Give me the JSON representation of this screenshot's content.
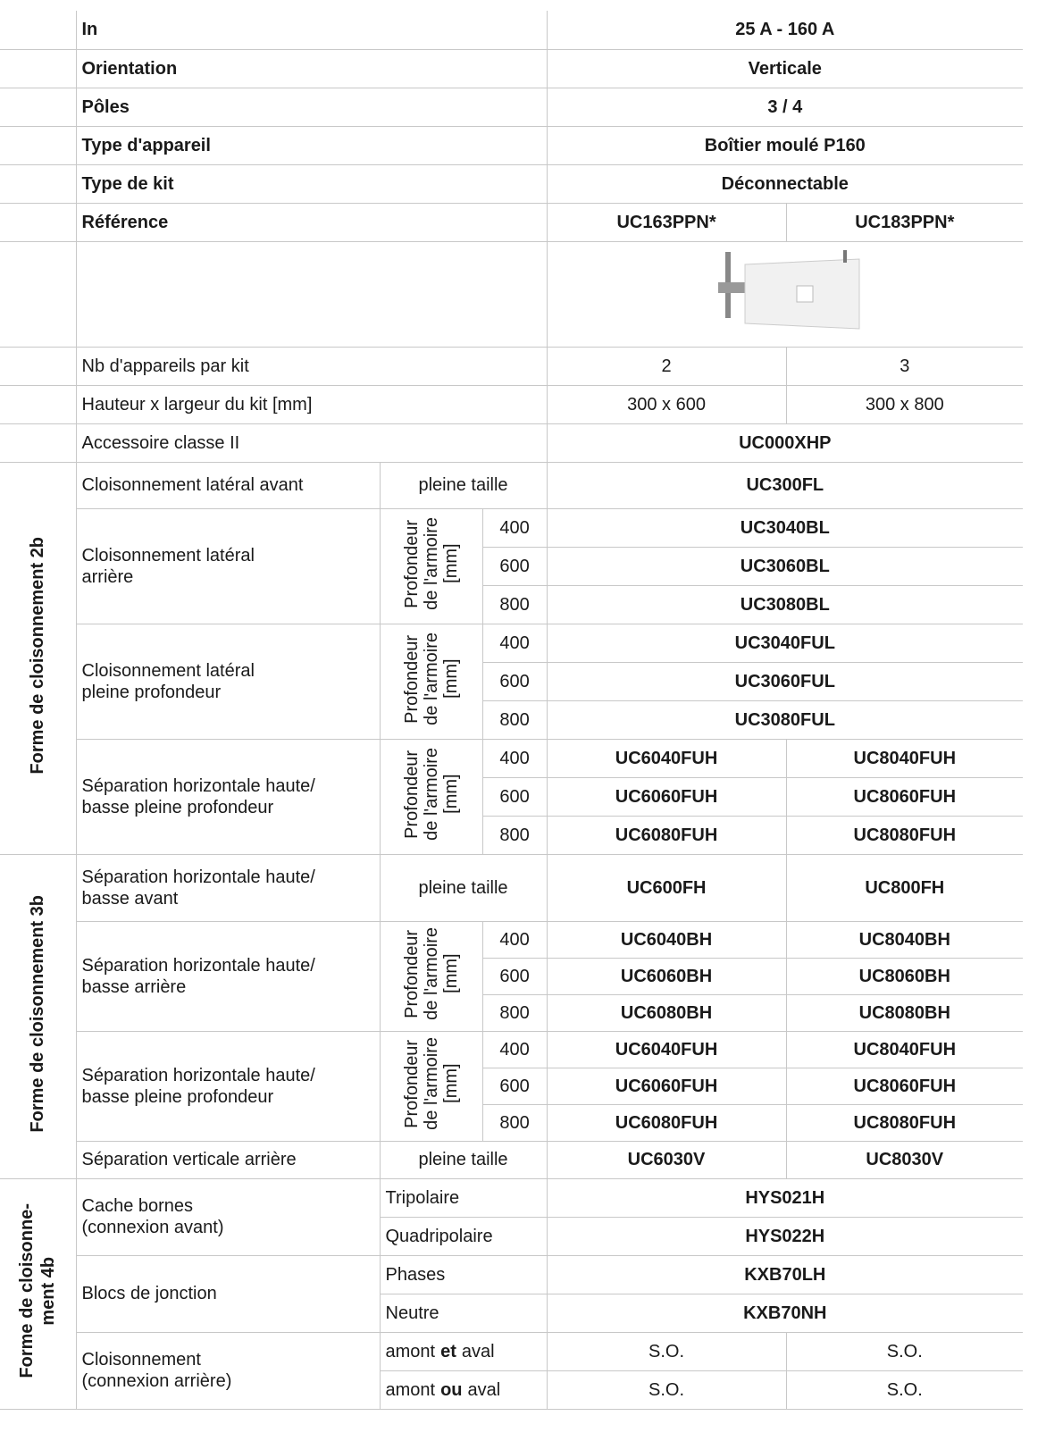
{
  "general": [
    {
      "label": "In",
      "value": "25 A - 160 A"
    },
    {
      "label": "Orientation",
      "value": "Verticale"
    },
    {
      "label": "Pôles",
      "value": "3 / 4"
    },
    {
      "label": "Type d'appareil",
      "value": "Boîtier moulé P160"
    },
    {
      "label": "Type de kit",
      "value": "Déconnectable"
    },
    {
      "label": "Référence",
      "values": [
        "UC163PPN*",
        "UC183PPN*"
      ]
    }
  ],
  "specs": [
    {
      "label": "Nb d'appareils par kit",
      "values": [
        2,
        3
      ]
    },
    {
      "label": "Hauteur x largeur du kit [mm]",
      "values": [
        "300 x 600",
        "300 x 800"
      ]
    },
    {
      "label": "Accessoire classe II",
      "value": "UC000XHP"
    }
  ],
  "sections": [
    {
      "title_lines": [
        "Forme de cloisonnement 2b"
      ],
      "groups": [
        {
          "label": [
            "Cloisonnement latéral avant"
          ],
          "qualifier": "pleine taille",
          "value": "UC300FL"
        },
        {
          "label": [
            "Cloisonnement latéral",
            "arrière"
          ],
          "depth_label": [
            "Profondeur",
            "de l'armoire",
            "[mm]"
          ],
          "rows": [
            {
              "depth": 400,
              "value": "UC3040BL"
            },
            {
              "depth": 600,
              "value": "UC3060BL"
            },
            {
              "depth": 800,
              "value": "UC3080BL"
            }
          ]
        },
        {
          "label": [
            "Cloisonnement latéral",
            "pleine profondeur"
          ],
          "depth_label": [
            "Profondeur",
            "de l'armoire",
            "[mm]"
          ],
          "rows": [
            {
              "depth": 400,
              "value": "UC3040FUL"
            },
            {
              "depth": 600,
              "value": "UC3060FUL"
            },
            {
              "depth": 800,
              "value": "UC3080FUL"
            }
          ]
        },
        {
          "label": [
            "Séparation horizontale haute/",
            "basse pleine profondeur"
          ],
          "depth_label": [
            "Profondeur",
            "de l'armoire",
            "[mm]"
          ],
          "rows": [
            {
              "depth": 400,
              "values": [
                "UC6040FUH",
                "UC8040FUH"
              ]
            },
            {
              "depth": 600,
              "values": [
                "UC6060FUH",
                "UC8060FUH"
              ]
            },
            {
              "depth": 800,
              "values": [
                "UC6080FUH",
                "UC8080FUH"
              ]
            }
          ]
        }
      ]
    },
    {
      "title_lines": [
        "Forme de cloisonnement 3b"
      ],
      "groups": [
        {
          "label": [
            "Séparation horizontale haute/",
            "basse avant"
          ],
          "qualifier": "pleine taille",
          "values": [
            "UC600FH",
            "UC800FH"
          ]
        },
        {
          "label": [
            "Séparation horizontale haute/",
            "basse arrière"
          ],
          "depth_label": [
            "Profondeur",
            "de l'armoire",
            "[mm]"
          ],
          "rows": [
            {
              "depth": 400,
              "values": [
                "UC6040BH",
                "UC8040BH"
              ]
            },
            {
              "depth": 600,
              "values": [
                "UC6060BH",
                "UC8060BH"
              ]
            },
            {
              "depth": 800,
              "values": [
                "UC6080BH",
                "UC8080BH"
              ]
            }
          ]
        },
        {
          "label": [
            "Séparation horizontale haute/",
            "basse pleine profondeur"
          ],
          "depth_label": [
            "Profondeur",
            "de l'armoire",
            "[mm]"
          ],
          "rows": [
            {
              "depth": 400,
              "values": [
                "UC6040FUH",
                "UC8040FUH"
              ]
            },
            {
              "depth": 600,
              "values": [
                "UC6060FUH",
                "UC8060FUH"
              ]
            },
            {
              "depth": 800,
              "values": [
                "UC6080FUH",
                "UC8080FUH"
              ]
            }
          ]
        },
        {
          "label": [
            "Séparation verticale arrière"
          ],
          "qualifier": "pleine taille",
          "values": [
            "UC6030V",
            "UC8030V"
          ]
        }
      ]
    },
    {
      "title_lines": [
        "Forme de cloisonne-",
        "ment 4b"
      ],
      "groups": [
        {
          "label": [
            "Cache bornes",
            "(connexion avant)"
          ],
          "options": [
            {
              "name": "Tripolaire",
              "value": "HYS021H"
            },
            {
              "name": "Quadripolaire",
              "value": "HYS022H"
            }
          ]
        },
        {
          "label": [
            "Blocs de jonction"
          ],
          "options": [
            {
              "name": "Phases",
              "value": "KXB70LH"
            },
            {
              "name": "Neutre",
              "value": "KXB70NH"
            }
          ]
        },
        {
          "label": [
            "Cloisonnement",
            "(connexion arrière)"
          ],
          "options": [
            {
              "name_parts": [
                "amont",
                "et",
                "aval"
              ],
              "values": [
                "S.O.",
                "S.O."
              ]
            },
            {
              "name_parts": [
                "amont",
                "ou",
                "aval"
              ],
              "values": [
                "S.O.",
                "S.O."
              ]
            }
          ]
        }
      ]
    }
  ]
}
